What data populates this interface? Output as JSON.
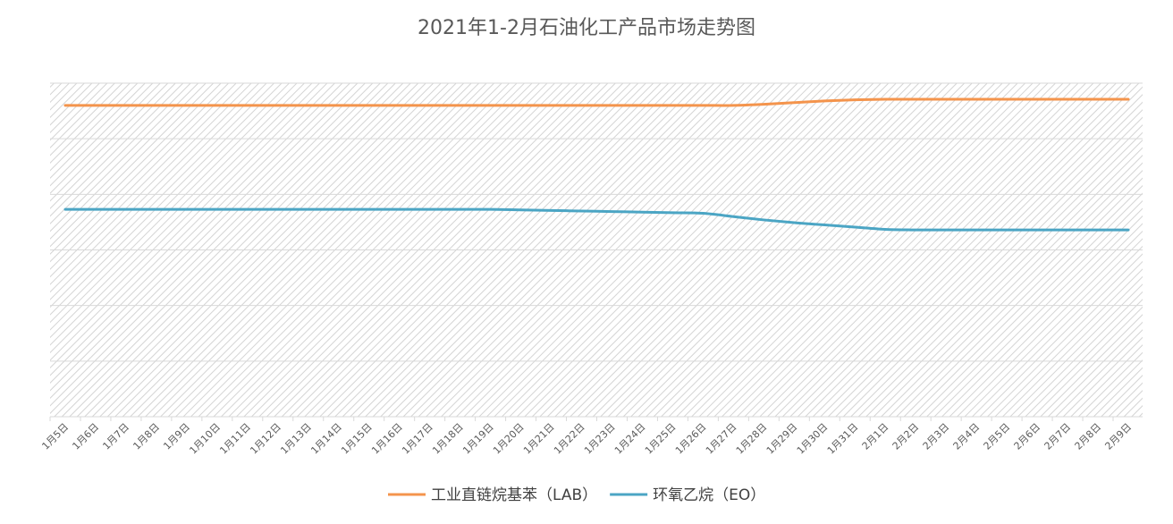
{
  "chart_data": {
    "type": "line",
    "title": "2021年1-2月石油化工产品市场走势图",
    "xlabel": "",
    "ylabel": "",
    "ylim": [
      0,
      6
    ],
    "y_tick_labels_shown": false,
    "grid": true,
    "background": "hatched",
    "legend_position": "bottom",
    "x": [
      "1月5日",
      "1月6日",
      "1月7日",
      "1月8日",
      "1月9日",
      "1月10日",
      "1月11日",
      "1月12日",
      "1月13日",
      "1月14日",
      "1月15日",
      "1月16日",
      "1月17日",
      "1月18日",
      "1月19日",
      "1月20日",
      "1月21日",
      "1月22日",
      "1月23日",
      "1月24日",
      "1月25日",
      "1月26日",
      "1月27日",
      "1月28日",
      "1月29日",
      "1月30日",
      "1月31日",
      "2月1日",
      "2月2日",
      "2月3日",
      "2月4日",
      "2月5日",
      "2月6日",
      "2月7日",
      "2月8日",
      "2月9日"
    ],
    "series": [
      {
        "name": "工业直链烷基苯（LAB）",
        "color": "#f4944c",
        "values": [
          5.6,
          5.6,
          5.6,
          5.6,
          5.6,
          5.6,
          5.6,
          5.6,
          5.6,
          5.6,
          5.6,
          5.6,
          5.6,
          5.6,
          5.6,
          5.6,
          5.6,
          5.6,
          5.6,
          5.6,
          5.6,
          5.6,
          5.6,
          5.62,
          5.65,
          5.68,
          5.7,
          5.71,
          5.71,
          5.71,
          5.71,
          5.71,
          5.71,
          5.71,
          5.71,
          5.71
        ]
      },
      {
        "name": "环氧乙烷（EO）",
        "color": "#4ba5c4",
        "values": [
          3.73,
          3.73,
          3.73,
          3.73,
          3.73,
          3.73,
          3.73,
          3.73,
          3.73,
          3.73,
          3.73,
          3.73,
          3.73,
          3.73,
          3.73,
          3.72,
          3.71,
          3.7,
          3.69,
          3.68,
          3.67,
          3.66,
          3.6,
          3.54,
          3.49,
          3.45,
          3.41,
          3.37,
          3.36,
          3.36,
          3.36,
          3.36,
          3.36,
          3.36,
          3.36,
          3.36
        ]
      }
    ]
  }
}
